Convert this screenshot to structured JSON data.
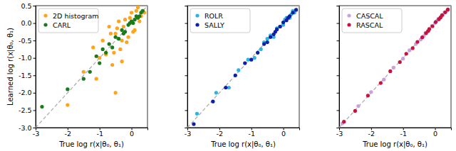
{
  "chart_data": [
    {
      "type": "scatter",
      "x_label": "True log r(x|θ₀, θ₁)",
      "y_label": "Learned log r(x|θ₀, θ₁)",
      "xlim": [
        -3,
        0.5
      ],
      "ylim": [
        -3,
        0.5
      ],
      "xticks": [
        -3,
        -2,
        -1,
        0
      ],
      "yticks": [
        {
          "value": -3,
          "label": "-3.0"
        },
        -2.5,
        {
          "value": -2,
          "label": "-2.0"
        },
        -1.5,
        {
          "value": -1,
          "label": "-1.0"
        },
        -0.5,
        {
          "value": 0,
          "label": "0.0"
        },
        0.5
      ],
      "legend": "upper left",
      "grid": false,
      "marker": "circle",
      "series": [
        {
          "name": "2D histogram",
          "color": "#ffa31a",
          "x": [
            0.3,
            0.2,
            0.1,
            0.0,
            -0.1,
            -0.2,
            -0.3,
            -0.4,
            -0.5,
            -0.6,
            -0.7,
            -0.8,
            -1.0,
            -1.2,
            -1.5,
            -2.0,
            0.35,
            0.25,
            0.15,
            0.05,
            -0.05,
            -0.15,
            -0.25,
            -0.35,
            -0.45,
            -0.9,
            -1.1,
            -0.65,
            -0.55,
            0.4,
            -0.5,
            -0.3
          ],
          "values": [
            0.2,
            0.45,
            -0.2,
            0.3,
            -0.4,
            0.1,
            -0.5,
            0.05,
            -0.3,
            -1.2,
            -0.1,
            -0.9,
            -1.0,
            -0.7,
            -1.4,
            -2.35,
            0.35,
            0.05,
            0.35,
            -0.25,
            0.15,
            -0.55,
            -0.1,
            -0.75,
            -0.15,
            -0.5,
            -1.6,
            -0.3,
            -0.85,
            0.3,
            -2.0,
            -1.1
          ]
        },
        {
          "name": "CARL",
          "color": "#1b7a1b",
          "x": [
            0.35,
            0.3,
            0.2,
            0.1,
            0.0,
            -0.1,
            -0.2,
            -0.3,
            -0.4,
            -0.5,
            -0.6,
            -0.7,
            -0.8,
            -0.9,
            -1.0,
            -1.1,
            -1.3,
            -1.5,
            -2.0,
            -2.8,
            0.25,
            0.15,
            0.05,
            -0.05,
            -0.25
          ],
          "values": [
            0.35,
            0.3,
            0.15,
            0.1,
            0.05,
            -0.05,
            -0.25,
            -0.2,
            -0.45,
            -0.4,
            -0.7,
            -0.6,
            -0.85,
            -0.75,
            -1.15,
            -0.95,
            -1.4,
            -1.6,
            -1.9,
            -2.4,
            0.2,
            0.2,
            0.0,
            0.0,
            -0.3
          ]
        }
      ]
    },
    {
      "type": "scatter",
      "x_label": "True log r(x|θ₀, θ₁)",
      "tick_labels": "x",
      "xlim": [
        -3,
        0.5
      ],
      "ylim": [
        -3,
        0.5
      ],
      "xticks": [
        -3,
        -2,
        -1,
        0
      ],
      "yticks": [
        -3,
        -2.5,
        -2,
        -1.5,
        -1,
        -0.5,
        0,
        0.5
      ],
      "legend": "upper left",
      "grid": false,
      "marker": "circle",
      "series": [
        {
          "name": "ROLR",
          "color": "#2bb5e0",
          "x": [
            0.35,
            0.3,
            0.2,
            0.1,
            0.0,
            -0.1,
            -0.2,
            -0.3,
            -0.5,
            -0.7,
            -0.9,
            -1.1,
            -1.4,
            -1.7,
            -2.1,
            -2.7,
            0.25,
            0.05,
            -0.4,
            -0.6
          ],
          "values": [
            0.3,
            0.35,
            0.15,
            0.15,
            -0.05,
            -0.1,
            -0.15,
            -0.4,
            -0.45,
            -0.75,
            -1.0,
            -1.05,
            -1.35,
            -1.85,
            -2.0,
            -2.6,
            0.25,
            0.1,
            -0.35,
            -0.55
          ]
        },
        {
          "name": "SALLY",
          "color": "#0b1fa8",
          "x": [
            0.4,
            0.3,
            0.2,
            0.1,
            0.0,
            -0.1,
            -0.2,
            -0.3,
            -0.4,
            -0.5,
            -0.6,
            -0.8,
            -1.0,
            -1.2,
            -1.5,
            -1.8,
            -2.2,
            -2.8,
            0.15,
            -0.25
          ],
          "values": [
            0.38,
            0.3,
            0.2,
            0.08,
            0.02,
            -0.1,
            -0.18,
            -0.32,
            -0.4,
            -0.55,
            -0.6,
            -0.85,
            -1.05,
            -1.15,
            -1.5,
            -1.85,
            -2.25,
            -2.9,
            0.15,
            -0.25
          ]
        }
      ]
    },
    {
      "type": "scatter",
      "x_label": "True log r(x|θ₀, θ₁)",
      "tick_labels": "x",
      "xlim": [
        -3,
        0.5
      ],
      "ylim": [
        -3,
        0.5
      ],
      "xticks": [
        -3,
        -2,
        -1,
        0
      ],
      "yticks": [
        -3,
        -2.5,
        -2,
        -1.5,
        -1,
        -0.5,
        0,
        0.5
      ],
      "legend": "upper left",
      "grid": false,
      "marker": "circle",
      "series": [
        {
          "name": "CASCAL",
          "color": "#c8a2dc",
          "x": [
            0.38,
            0.3,
            0.2,
            0.1,
            0.0,
            -0.1,
            -0.2,
            -0.3,
            -0.45,
            -0.6,
            -0.8,
            -1.0,
            -1.3,
            -1.6,
            -2.0,
            -2.4,
            -2.9,
            0.25,
            0.05,
            -0.35
          ],
          "values": [
            0.36,
            0.31,
            0.19,
            0.12,
            0.0,
            -0.08,
            -0.22,
            -0.28,
            -0.47,
            -0.6,
            -0.78,
            -1.02,
            -1.28,
            -1.62,
            -1.98,
            -2.38,
            -2.88,
            0.24,
            0.06,
            -0.37
          ]
        },
        {
          "name": "RASCAL",
          "color": "#c2143c",
          "x": [
            0.4,
            0.32,
            0.22,
            0.12,
            0.02,
            -0.08,
            -0.18,
            -0.28,
            -0.4,
            -0.55,
            -0.7,
            -0.9,
            -1.1,
            -1.4,
            -1.7,
            -2.1,
            -2.5,
            -2.85,
            0.17,
            -0.22
          ],
          "values": [
            0.39,
            0.31,
            0.23,
            0.11,
            0.03,
            -0.09,
            -0.17,
            -0.29,
            -0.41,
            -0.54,
            -0.72,
            -0.88,
            -1.12,
            -1.38,
            -1.72,
            -2.08,
            -2.52,
            -2.83,
            0.16,
            -0.23
          ]
        }
      ]
    }
  ]
}
